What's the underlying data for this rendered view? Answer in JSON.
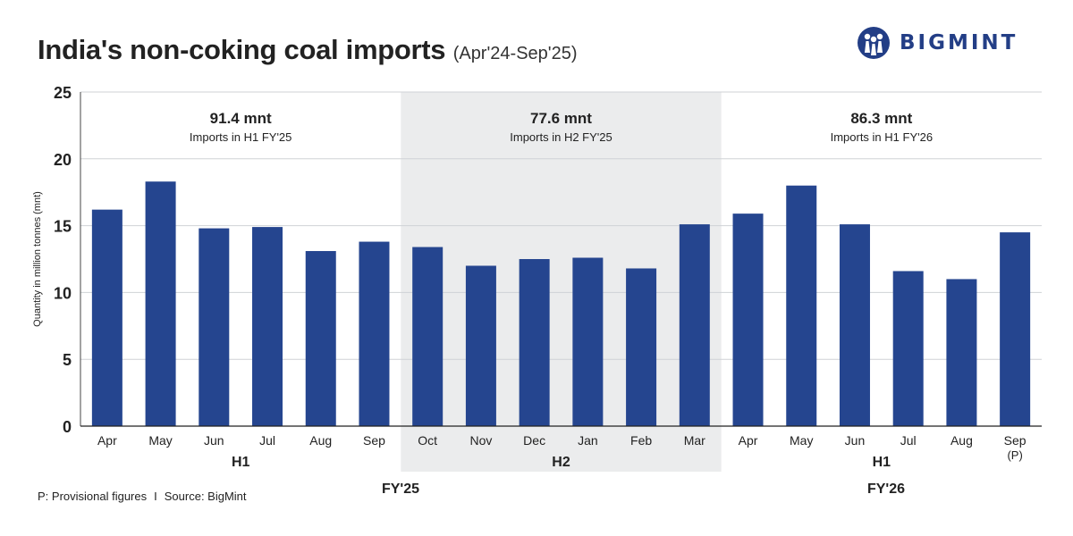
{
  "header": {
    "title": "India's non-coking coal imports",
    "subtitle": "(Apr'24-Sep'25)",
    "brand": "BIGMINT"
  },
  "footer": {
    "note": "P: Provisional figures",
    "separator": "I",
    "source": "Source: BigMint"
  },
  "colors": {
    "bar": "#25458f",
    "shade": "#ebeced",
    "grid": "#cfd2d6",
    "brand": "#233e86"
  },
  "chart_data": {
    "type": "bar",
    "title": "India's non-coking coal imports (Apr'24-Sep'25)",
    "ylabel": "Quantity in million tonnes (mnt)",
    "xlabel": "",
    "ylim": [
      0,
      25
    ],
    "yticks": [
      0,
      5,
      10,
      15,
      20,
      25
    ],
    "categories": [
      "Apr",
      "May",
      "Jun",
      "Jul",
      "Aug",
      "Sep",
      "Oct",
      "Nov",
      "Dec",
      "Jan",
      "Feb",
      "Mar",
      "Apr",
      "May",
      "Jun",
      "Jul",
      "Aug",
      "Sep"
    ],
    "category_notes": [
      "",
      "",
      "",
      "",
      "",
      "",
      "",
      "",
      "",
      "",
      "",
      "",
      "",
      "",
      "",
      "",
      "",
      "(P)"
    ],
    "values": [
      16.2,
      18.3,
      14.8,
      14.9,
      13.1,
      13.8,
      13.4,
      12.0,
      12.5,
      12.6,
      11.8,
      15.1,
      15.9,
      18.0,
      15.1,
      11.6,
      11.0,
      14.5
    ],
    "grid": true,
    "half_years": [
      {
        "label": "H1",
        "start": 0,
        "end": 5,
        "shaded": false,
        "total": "91.4 mnt",
        "caption": "Imports in H1 FY'25"
      },
      {
        "label": "H2",
        "start": 6,
        "end": 11,
        "shaded": true,
        "total": "77.6 mnt",
        "caption": "Imports in H2 FY'25"
      },
      {
        "label": "H1",
        "start": 12,
        "end": 17,
        "shaded": false,
        "total": "86.3 mnt",
        "caption": "Imports in H1 FY'26"
      }
    ],
    "fiscal_years": [
      {
        "label": "FY'25",
        "start": 0,
        "end": 11
      },
      {
        "label": "FY'26",
        "start": 12,
        "end": 17
      }
    ]
  }
}
